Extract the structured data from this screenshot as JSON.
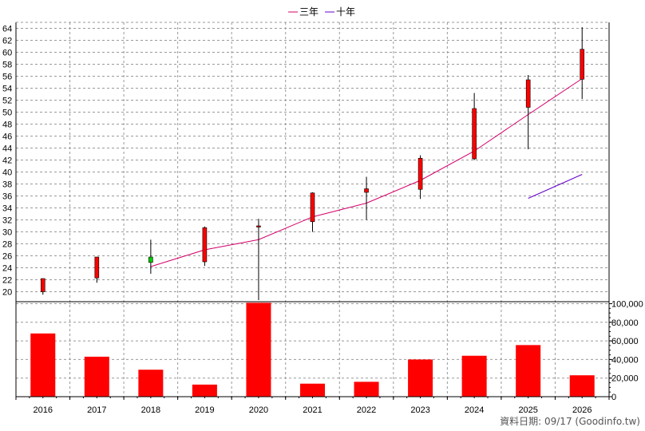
{
  "chart_data": {
    "type": "candlestick+bar",
    "legend": [
      {
        "label": "三年",
        "color": "#d4006a"
      },
      {
        "label": "十年",
        "color": "#6600cc"
      }
    ],
    "grid": true,
    "categories": [
      "2016",
      "2017",
      "2018",
      "2019",
      "2020",
      "2021",
      "2022",
      "2023",
      "2024",
      "2025",
      "2026"
    ],
    "price_axis": {
      "ylim": [
        18.6,
        65
      ],
      "ticks": [
        20,
        22,
        24,
        26,
        28,
        30,
        32,
        34,
        36,
        38,
        40,
        42,
        44,
        46,
        48,
        50,
        52,
        54,
        56,
        58,
        60,
        62,
        64
      ],
      "tick_labels": [
        "20",
        "22",
        "24",
        "26",
        "28",
        "30",
        "32",
        "34",
        "36",
        "38",
        "40",
        "42",
        "44",
        "46",
        "48",
        "50",
        "52",
        "54",
        "56",
        "58",
        "60",
        "62",
        "64"
      ]
    },
    "volume_axis": {
      "ylim": [
        0,
        100000
      ],
      "ticks": [
        0,
        20000,
        40000,
        60000,
        80000,
        100000
      ],
      "tick_labels": [
        "0",
        "20,000",
        "40,000",
        "60,000",
        "80,000",
        "100,000"
      ]
    },
    "candles": [
      {
        "x": "2016",
        "open": 22.2,
        "high": 22.2,
        "low": 19.5,
        "close": 20.0,
        "color": "#ff0000"
      },
      {
        "x": "2017",
        "open": 25.8,
        "high": 25.8,
        "low": 21.5,
        "close": 22.3,
        "color": "#ff0000"
      },
      {
        "x": "2018",
        "open": 25.8,
        "high": 28.7,
        "low": 23.0,
        "close": 24.9,
        "color": "#00cc00"
      },
      {
        "x": "2019",
        "open": 30.7,
        "high": 30.9,
        "low": 24.3,
        "close": 25.0,
        "color": "#ff0000"
      },
      {
        "x": "2020",
        "open": 31.0,
        "high": 32.2,
        "low": 18.6,
        "close": 30.8,
        "color": "#ff0000"
      },
      {
        "x": "2021",
        "open": 36.5,
        "high": 36.6,
        "low": 30.0,
        "close": 31.7,
        "color": "#ff0000"
      },
      {
        "x": "2022",
        "open": 37.2,
        "high": 39.2,
        "low": 32.0,
        "close": 36.6,
        "color": "#ff0000"
      },
      {
        "x": "2023",
        "open": 42.3,
        "high": 42.8,
        "low": 35.5,
        "close": 37.1,
        "color": "#ff0000"
      },
      {
        "x": "2024",
        "open": 50.6,
        "high": 53.2,
        "low": 42.0,
        "close": 42.2,
        "color": "#ff0000"
      },
      {
        "x": "2025",
        "open": 55.4,
        "high": 56.2,
        "low": 43.8,
        "close": 50.8,
        "color": "#ff0000"
      },
      {
        "x": "2026",
        "open": 60.5,
        "high": 64.2,
        "low": 52.2,
        "close": 55.5,
        "color": "#ff0000"
      }
    ],
    "series": [
      {
        "name": "三年",
        "color": "#d4006a",
        "x": [
          "2018",
          "2019",
          "2020",
          "2021",
          "2022",
          "2023",
          "2024",
          "2025",
          "2026"
        ],
        "values": [
          24.2,
          27.0,
          28.7,
          32.5,
          34.8,
          38.6,
          43.5,
          49.6,
          55.6
        ]
      },
      {
        "name": "十年",
        "color": "#6600cc",
        "x": [
          "2025",
          "2026"
        ],
        "values": [
          35.6,
          39.6
        ]
      }
    ],
    "volume": {
      "color": "#ff0000",
      "values": [
        68000,
        43000,
        29000,
        13000,
        101000,
        14000,
        16000,
        40000,
        44000,
        55500,
        23000
      ]
    }
  },
  "credit": "資料日期: 09/17  (Goodinfo.tw)"
}
